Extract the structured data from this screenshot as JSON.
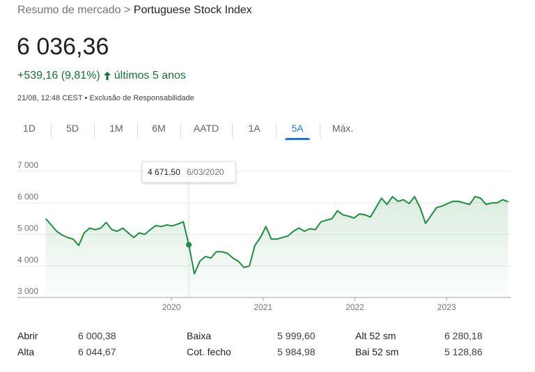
{
  "breadcrumb": {
    "parent": "Resumo de mercado >",
    "current": "Portuguese Stock Index"
  },
  "price": "6 036,36",
  "change": "+539,16 (9,81%)",
  "period": "últimos 5 anos",
  "timestamp": "21/08, 12:48 CEST",
  "separator": "•",
  "disclaimer": "Exclusão de Responsabilidade",
  "tabs": [
    "1D",
    "5D",
    "1M",
    "6M",
    "AATD",
    "1A",
    "5A",
    "Máx."
  ],
  "selected_tab_index": 6,
  "stats": [
    [
      {
        "label": "Abrir",
        "value": "6 000,38"
      },
      {
        "label": "Baixa",
        "value": "5 999,60"
      },
      {
        "label": "Alt 52 sm",
        "value": "6 280,18"
      }
    ],
    [
      {
        "label": "Alta",
        "value": "6 044,67"
      },
      {
        "label": "Cot. fecho",
        "value": "5 984,98"
      },
      {
        "label": "Bai 52 sm",
        "value": "5 128,86"
      }
    ]
  ],
  "chart_data": {
    "type": "line",
    "color": "#1e8e3e",
    "area": true,
    "grid": true,
    "x": [
      2018.63,
      2018.69,
      2018.75,
      2018.81,
      2018.87,
      2018.93,
      2018.99,
      2019.05,
      2019.11,
      2019.17,
      2019.23,
      2019.29,
      2019.35,
      2019.41,
      2019.47,
      2019.53,
      2019.59,
      2019.65,
      2019.71,
      2019.77,
      2019.83,
      2019.89,
      2019.95,
      2020.01,
      2020.07,
      2020.13,
      2020.19,
      2020.25,
      2020.31,
      2020.37,
      2020.43,
      2020.49,
      2020.55,
      2020.61,
      2020.67,
      2020.73,
      2020.79,
      2020.85,
      2020.91,
      2020.97,
      2021.03,
      2021.09,
      2021.15,
      2021.21,
      2021.27,
      2021.33,
      2021.39,
      2021.45,
      2021.51,
      2021.57,
      2021.63,
      2021.69,
      2021.75,
      2021.81,
      2021.87,
      2021.93,
      2021.99,
      2022.05,
      2022.11,
      2022.17,
      2022.23,
      2022.29,
      2022.35,
      2022.41,
      2022.47,
      2022.53,
      2022.59,
      2022.65,
      2022.71,
      2022.77,
      2022.83,
      2022.89,
      2022.95,
      2023.01,
      2023.07,
      2023.13,
      2023.19,
      2023.25,
      2023.31,
      2023.37,
      2023.43,
      2023.49,
      2023.55,
      2023.61,
      2023.67
    ],
    "values": [
      5500,
      5300,
      5100,
      4980,
      4900,
      4850,
      4650,
      5050,
      5200,
      5150,
      5200,
      5380,
      5150,
      5100,
      5200,
      5050,
      4900,
      5050,
      5000,
      5150,
      5280,
      5250,
      5300,
      5270,
      5330,
      5400,
      4671.5,
      3750,
      4150,
      4300,
      4250,
      4450,
      4450,
      4400,
      4250,
      4150,
      3950,
      4000,
      4650,
      4900,
      5250,
      4850,
      4850,
      4900,
      4950,
      5100,
      5200,
      5100,
      5180,
      5150,
      5400,
      5450,
      5500,
      5750,
      5620,
      5580,
      5520,
      5650,
      5620,
      5550,
      5850,
      6150,
      5950,
      6200,
      6050,
      6100,
      5980,
      6200,
      5850,
      5350,
      5600,
      5850,
      5900,
      5980,
      6050,
      6050,
      6000,
      5950,
      6200,
      6150,
      5950,
      6000,
      6000,
      6100,
      6036.36
    ],
    "xlim": [
      2018.63,
      2023.67
    ],
    "xticks": [
      2020,
      2021,
      2022,
      2023
    ],
    "ylim": [
      3000,
      7000
    ],
    "yticks": [
      {
        "value": 3000,
        "label": "3 000"
      },
      {
        "value": 4000,
        "label": "4 000"
      },
      {
        "value": 5000,
        "label": "5 000"
      },
      {
        "value": 6000,
        "label": "6 000"
      },
      {
        "value": 7000,
        "label": "7 000"
      }
    ],
    "tooltip": {
      "x": 2020.19,
      "y": 4671.5,
      "label": "4 671,50",
      "date": "6/03/2020"
    }
  }
}
